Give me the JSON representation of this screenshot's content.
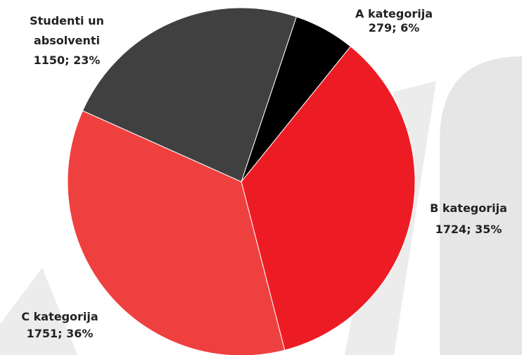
{
  "chart_data": {
    "type": "pie",
    "categories": [
      "A kategorija",
      "B kategorija",
      "C kategorija",
      "Studenti un absolventi"
    ],
    "values": [
      279,
      1724,
      1751,
      1150
    ],
    "value_labels": [
      "279; 6%",
      "1724; 35%",
      "1751; 36%",
      "1150; 23%"
    ],
    "colors": [
      "#000000",
      "#ed1c24",
      "#ef4040",
      "#404040"
    ]
  }
}
